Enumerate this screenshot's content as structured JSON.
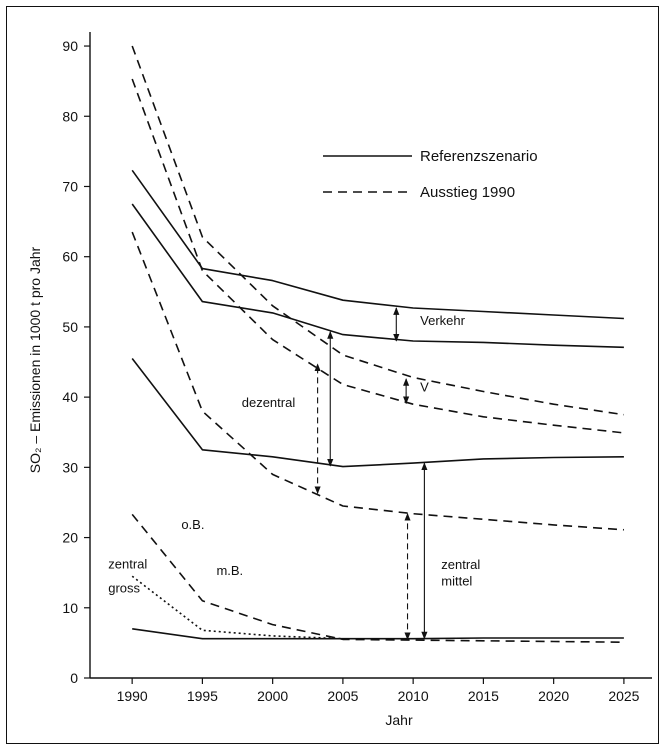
{
  "chart_data": {
    "type": "line",
    "title": "",
    "xlabel": "Jahr",
    "ylabel": "SO₂ – Emissionen in 1000 t pro Jahr",
    "xlim": [
      1987,
      2027
    ],
    "ylim": [
      0,
      92
    ],
    "x_ticks": [
      1990,
      1995,
      2000,
      2005,
      2010,
      2015,
      2020,
      2025
    ],
    "y_ticks": [
      0,
      10,
      20,
      30,
      40,
      50,
      60,
      70,
      80,
      90
    ],
    "legend": {
      "placement": "top-right",
      "entries": [
        {
          "label": "Referenzszenario",
          "style": "solid"
        },
        {
          "label": "Ausstieg 1990",
          "style": "dashed"
        }
      ]
    },
    "series": [
      {
        "style": "solid",
        "x": [
          1990,
          1995,
          2000,
          2005,
          2010,
          2015,
          2020,
          2025
        ],
        "y": [
          72.3,
          58.3,
          56.6,
          53.8,
          52.7,
          52.2,
          51.7,
          51.2
        ]
      },
      {
        "style": "solid",
        "x": [
          1990,
          1995,
          2000,
          2005,
          2010,
          2015,
          2020,
          2025
        ],
        "y": [
          67.5,
          53.6,
          52.0,
          48.9,
          48.0,
          47.8,
          47.4,
          47.1
        ]
      },
      {
        "style": "solid",
        "x": [
          1990,
          1995,
          2000,
          2005,
          2010,
          2015,
          2020,
          2025
        ],
        "y": [
          45.5,
          32.5,
          31.5,
          30.1,
          30.6,
          31.2,
          31.4,
          31.5
        ]
      },
      {
        "style": "solid",
        "x": [
          1990,
          1995,
          2000,
          2005,
          2010,
          2015,
          2020,
          2025
        ],
        "y": [
          7.0,
          5.6,
          5.6,
          5.6,
          5.6,
          5.7,
          5.7,
          5.7
        ]
      },
      {
        "style": "dashed",
        "x": [
          1990,
          1995,
          2000,
          2005,
          2010,
          2015,
          2020,
          2025
        ],
        "y": [
          90.0,
          62.8,
          53.0,
          46.0,
          42.8,
          40.8,
          39.0,
          37.5
        ]
      },
      {
        "style": "dashed",
        "x": [
          1990,
          1995,
          2000,
          2005,
          2010,
          2015,
          2020,
          2025
        ],
        "y": [
          85.3,
          58.0,
          48.2,
          41.8,
          39.0,
          37.2,
          36.0,
          34.9
        ]
      },
      {
        "style": "dashed",
        "x": [
          1990,
          1995,
          2000,
          2005,
          2010,
          2015,
          2020,
          2025
        ],
        "y": [
          63.5,
          38.0,
          29.0,
          24.5,
          23.4,
          22.6,
          21.8,
          21.1
        ]
      },
      {
        "style": "dashed",
        "x": [
          1990,
          1995,
          2000,
          2005,
          2010,
          2015,
          2020,
          2025
        ],
        "y": [
          23.3,
          11.0,
          7.6,
          5.5,
          5.4,
          5.3,
          5.2,
          5.1
        ]
      },
      {
        "style": "dotted",
        "x": [
          1990,
          1995,
          2000,
          2005
        ],
        "y": [
          14.5,
          6.8,
          6.0,
          5.6
        ]
      }
    ],
    "annotations": [
      {
        "text": "Verkehr",
        "x": 2010.5,
        "y": 50.3,
        "anchor": "start"
      },
      {
        "text": "V",
        "x": 2010.5,
        "y": 40.8,
        "anchor": "start"
      },
      {
        "text": "dezentral",
        "x": 1997.8,
        "y": 38.6,
        "anchor": "start"
      },
      {
        "text": "zentral",
        "x": 2012.0,
        "y": 15.5,
        "anchor": "start"
      },
      {
        "text": "mittel",
        "x": 2012.0,
        "y": 13.2,
        "anchor": "start"
      },
      {
        "text": "o.B.",
        "x": 1993.5,
        "y": 21.2,
        "anchor": "start"
      },
      {
        "text": "m.B.",
        "x": 1996.0,
        "y": 14.7,
        "anchor": "start"
      },
      {
        "text": "zentral",
        "x": 1988.3,
        "y": 15.6,
        "anchor": "start"
      },
      {
        "text": "gross",
        "x": 1988.3,
        "y": 12.2,
        "anchor": "start"
      }
    ],
    "arrows": [
      {
        "style": "solid",
        "x": 2008.8,
        "y_from": 48.0,
        "y_to": 52.7
      },
      {
        "style": "solid",
        "x": 2004.1,
        "y_from": 30.2,
        "y_to": 49.3
      },
      {
        "style": "dashed",
        "x": 2003.2,
        "y_from": 26.3,
        "y_to": 44.7
      },
      {
        "style": "solid",
        "x": 2009.5,
        "y_from": 39.1,
        "y_to": 42.6
      },
      {
        "style": "solid",
        "x": 2010.8,
        "y_from": 5.6,
        "y_to": 30.6
      },
      {
        "style": "dashed",
        "x": 2009.6,
        "y_from": 5.5,
        "y_to": 23.4
      }
    ]
  }
}
